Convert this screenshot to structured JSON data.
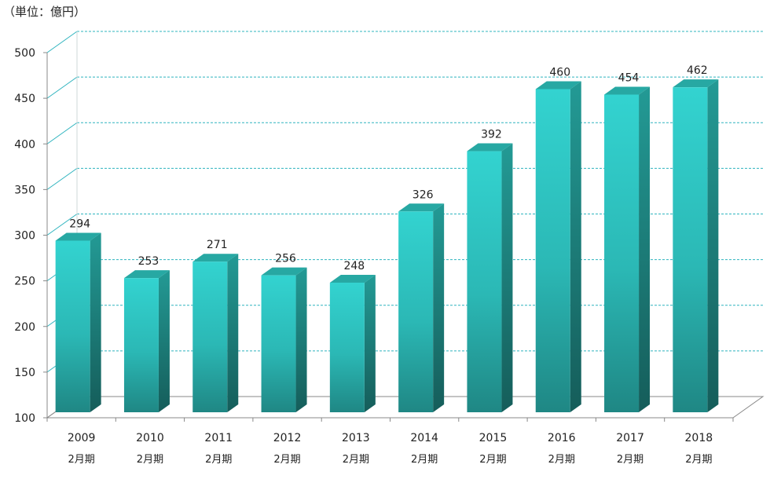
{
  "unit_label": "（単位：億円）",
  "chart_data": {
    "type": "bar",
    "title": "",
    "xlabel": "",
    "ylabel": "",
    "unit": "（単位：億円）",
    "ylim": [
      100,
      500
    ],
    "yticks": [
      100,
      150,
      200,
      250,
      300,
      350,
      400,
      450,
      500
    ],
    "grid": true,
    "categories": [
      "2009",
      "2010",
      "2011",
      "2012",
      "2013",
      "2014",
      "2015",
      "2016",
      "2017",
      "2018"
    ],
    "category_sublabel": "2月期",
    "values": [
      294,
      253,
      271,
      256,
      248,
      326,
      392,
      460,
      454,
      462
    ],
    "colors": {
      "bar_front": "#2ec9c6",
      "bar_side": "#1e8a86",
      "bar_top": "#27a8a3",
      "grid": "#2fb4bf",
      "axis": "#888888"
    }
  }
}
